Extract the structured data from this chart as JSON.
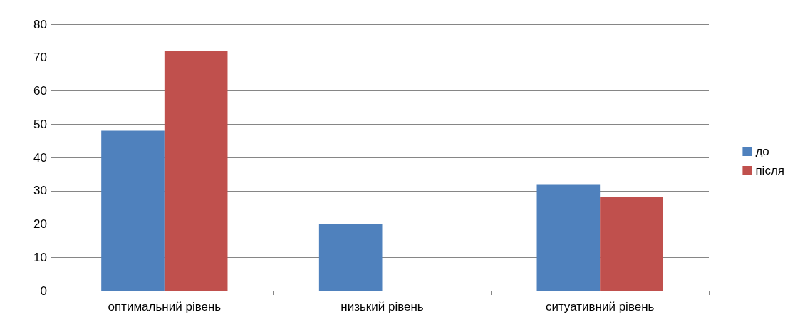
{
  "chart_data": {
    "type": "bar",
    "categories": [
      "оптимальний рівень",
      "низький рівень",
      "ситуативний рівень"
    ],
    "series": [
      {
        "name": "до",
        "color": "#4f81bd",
        "values": [
          48,
          20,
          32
        ]
      },
      {
        "name": "після",
        "color": "#c0504d",
        "values": [
          72,
          0,
          28
        ]
      }
    ],
    "ylim": [
      0,
      80
    ],
    "yticks": [
      0,
      10,
      20,
      30,
      40,
      50,
      60,
      70,
      80
    ],
    "grid": "y",
    "legend": "right"
  }
}
